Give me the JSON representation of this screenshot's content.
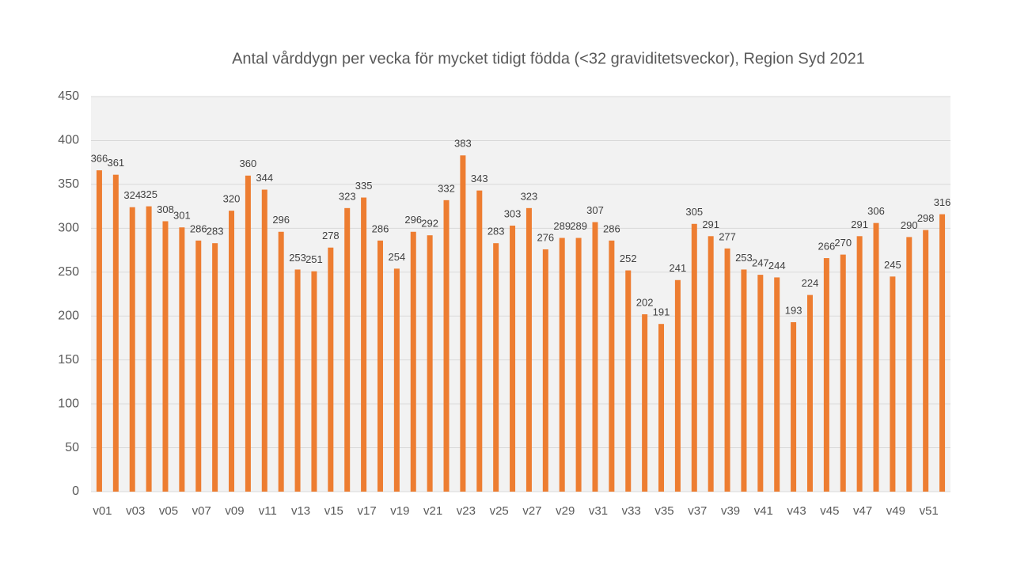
{
  "chart_data": {
    "type": "bar",
    "title": "Antal vårddygn per vecka för mycket tidigt födda (<32 graviditetsveckor), Region Syd 2021",
    "categories": [
      "v01",
      null,
      "v03",
      null,
      "v05",
      null,
      "v07",
      null,
      "v09",
      null,
      "v11",
      null,
      "v13",
      null,
      "v15",
      null,
      "v17",
      null,
      "v19",
      null,
      "v21",
      null,
      "v23",
      null,
      "v25",
      null,
      "v27",
      null,
      "v29",
      null,
      "v31",
      null,
      "v33",
      null,
      "v35",
      null,
      "v37",
      null,
      "v39",
      null,
      "v41",
      null,
      "v43",
      null,
      "v45",
      null,
      "v47",
      null,
      "v49",
      null,
      "v51",
      null
    ],
    "values": [
      366,
      361,
      324,
      325,
      308,
      301,
      286,
      283,
      320,
      360,
      344,
      296,
      253,
      251,
      278,
      323,
      335,
      286,
      254,
      296,
      292,
      332,
      383,
      343,
      283,
      303,
      323,
      276,
      289,
      289,
      307,
      286,
      252,
      202,
      191,
      241,
      305,
      291,
      277,
      253,
      247,
      244,
      193,
      224,
      266,
      270,
      291,
      306,
      245,
      290,
      298,
      316
    ],
    "color": "#ed7d31",
    "ylim": [
      0,
      450
    ],
    "yticks": [
      0,
      50,
      100,
      150,
      200,
      250,
      300,
      350,
      400,
      450
    ],
    "grid": true
  }
}
